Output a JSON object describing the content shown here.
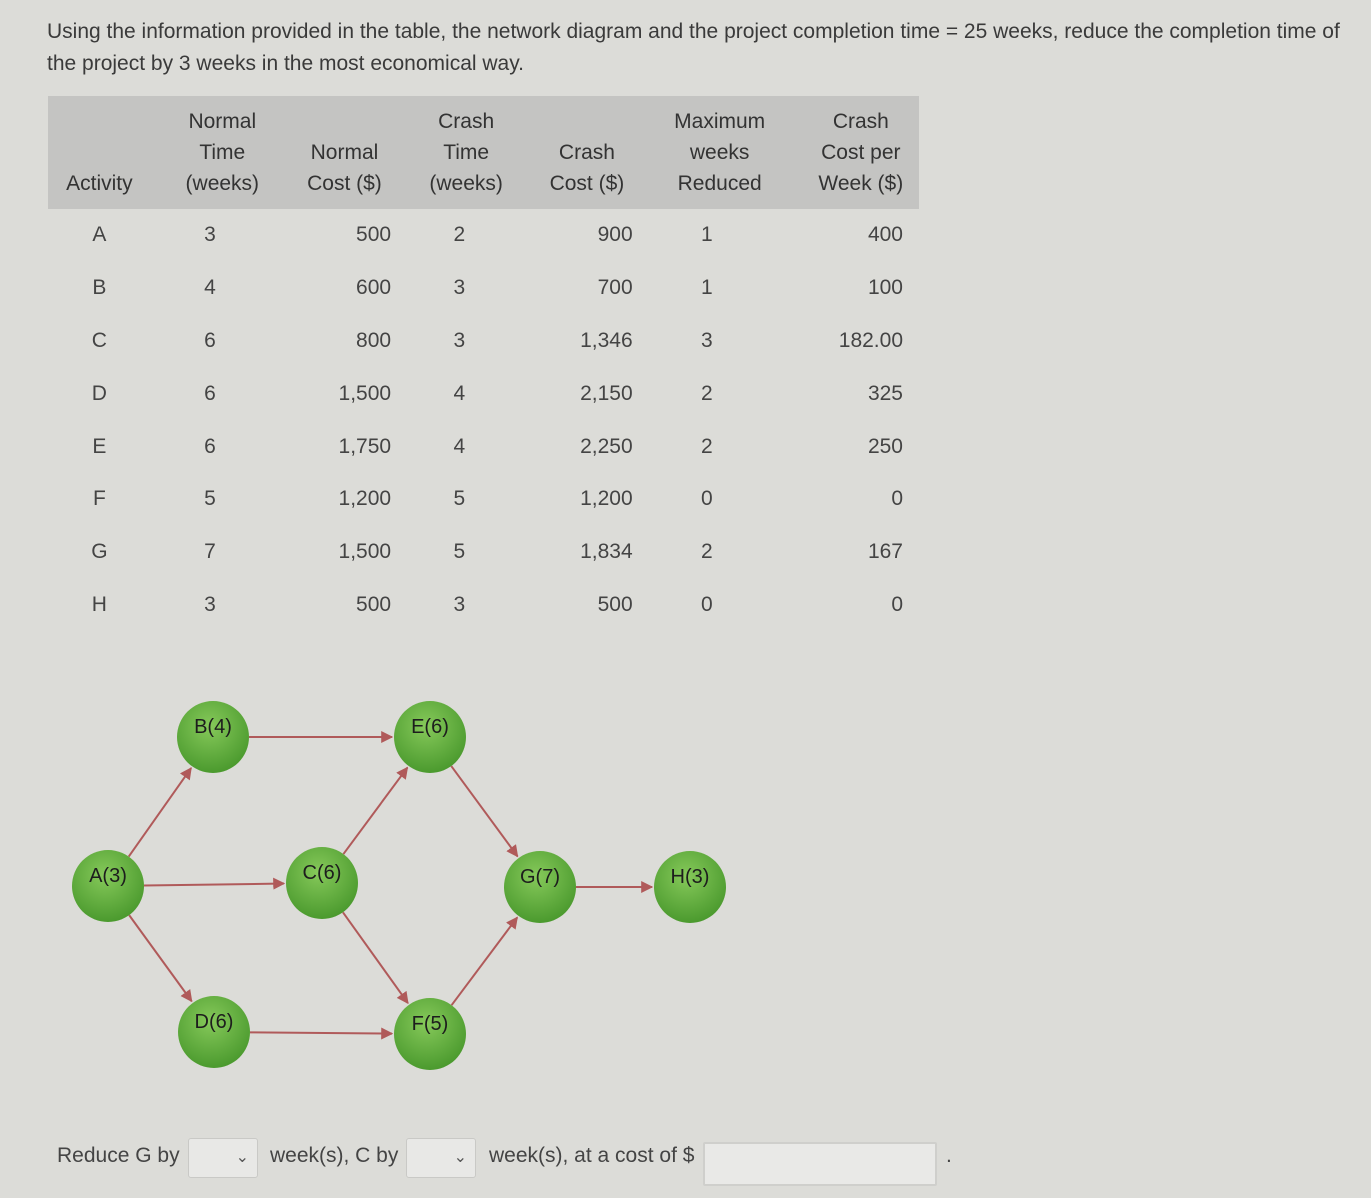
{
  "question": "Using the information provided in the table, the network diagram and the project completion time = 25 weeks, reduce the completion time of the project by 3 weeks in the most economical way.",
  "table": {
    "headers": [
      [
        "Activity"
      ],
      [
        "Normal",
        "Time",
        "(weeks)"
      ],
      [
        "Normal",
        "Cost ($)"
      ],
      [
        "Crash",
        "Time",
        "(weeks)"
      ],
      [
        "Crash",
        "Cost ($)"
      ],
      [
        "Maximum",
        "weeks",
        "Reduced"
      ],
      [
        "Crash",
        "Cost per",
        "Week ($)"
      ]
    ],
    "rows": [
      [
        "A",
        "3",
        "500",
        "2",
        "900",
        "1",
        "400"
      ],
      [
        "B",
        "4",
        "600",
        "3",
        "700",
        "1",
        "100"
      ],
      [
        "C",
        "6",
        "800",
        "3",
        "1,346",
        "3",
        "182.00"
      ],
      [
        "D",
        "6",
        "1,500",
        "4",
        "2,150",
        "2",
        "325"
      ],
      [
        "E",
        "6",
        "1,750",
        "4",
        "2,250",
        "2",
        "250"
      ],
      [
        "F",
        "5",
        "1,200",
        "5",
        "1,200",
        "0",
        "0"
      ],
      [
        "G",
        "7",
        "1,500",
        "5",
        "1,834",
        "2",
        "167"
      ],
      [
        "H",
        "3",
        "500",
        "3",
        "500",
        "0",
        "0"
      ]
    ]
  },
  "diagram": {
    "nodes": [
      {
        "id": "A",
        "label": "A(3)"
      },
      {
        "id": "B",
        "label": "B(4)"
      },
      {
        "id": "C",
        "label": "C(6)"
      },
      {
        "id": "D",
        "label": "D(6)"
      },
      {
        "id": "E",
        "label": "E(6)"
      },
      {
        "id": "F",
        "label": "F(5)"
      },
      {
        "id": "G",
        "label": "G(7)"
      },
      {
        "id": "H",
        "label": "H(3)"
      }
    ],
    "edges": [
      [
        "A",
        "B"
      ],
      [
        "A",
        "C"
      ],
      [
        "A",
        "D"
      ],
      [
        "B",
        "E"
      ],
      [
        "C",
        "E"
      ],
      [
        "C",
        "F"
      ],
      [
        "D",
        "F"
      ],
      [
        "E",
        "G"
      ],
      [
        "F",
        "G"
      ],
      [
        "G",
        "H"
      ]
    ],
    "node_color": "#5aa63c",
    "edge_color": "#b05a5a"
  },
  "answer": {
    "reduce_g_label": "Reduce G by",
    "weeks_c_label": "week(s), C by",
    "weeks_cost_label": "week(s), at a cost of $",
    "g_value": "",
    "c_value": "",
    "cost_value": "",
    "end_mark": "."
  }
}
